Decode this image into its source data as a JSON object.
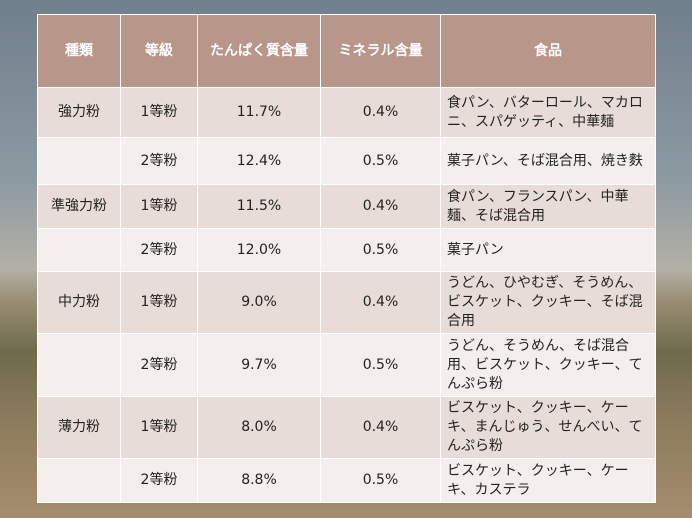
{
  "table": {
    "header": [
      "種類",
      "等級",
      "たんぱく質含量",
      "ミネラル含量",
      "食品"
    ],
    "rows": [
      [
        "強力粉",
        "1等粉",
        "11.7%",
        "0.4%",
        "食パン、バターロール、マカロニ、スパゲッティ、中華麺"
      ],
      [
        null,
        "2等粉",
        "12.4%",
        "0.5%",
        "菓子パン、そば混合用、焼き麩"
      ],
      [
        "準強力粉",
        "1等粉",
        "11.5%",
        "0.4%",
        "食パン、フランスパン、中華麺、そば混合用"
      ],
      [
        null,
        "2等粉",
        "12.0%",
        "0.5%",
        "菓子パン"
      ],
      [
        "中力粉",
        "1等粉",
        "9.0%",
        "0.4%",
        "うどん、ひやむぎ、そうめん、ビスケット、クッキー、そば混合用"
      ],
      [
        null,
        "2等粉",
        "9.7%",
        "0.5%",
        "うどん、そうめん、そば混合用、ビスケット、クッキー、てんぷら粉"
      ],
      [
        "薄力粉",
        "1等粉",
        "8.0%",
        "0.4%",
        "ビスケット、クッキー、ケーキ、まんじゅう、せんべい、てんぷら粉"
      ],
      [
        null,
        "2等粉",
        "8.8%",
        "0.5%",
        "ビスケット、クッキー、ケーキ、カステラ"
      ]
    ]
  }
}
